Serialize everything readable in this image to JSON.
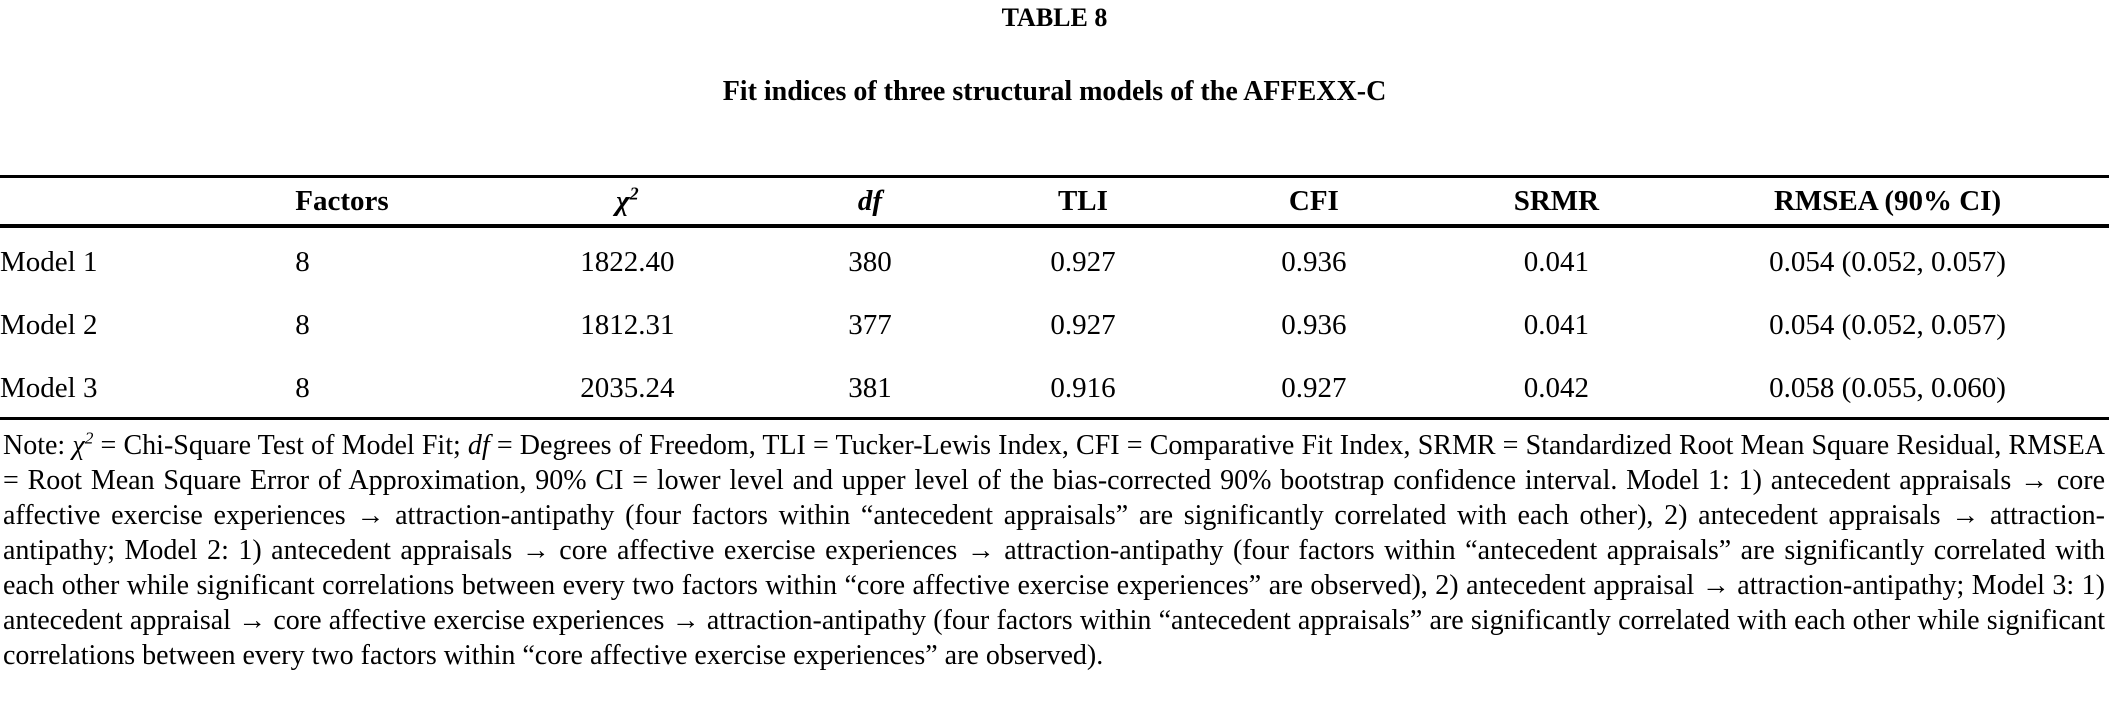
{
  "table_number": "TABLE 8",
  "caption": "Fit indices of three structural models of the AFFEXX-C",
  "table": {
    "headers": {
      "model": "",
      "factors": "Factors",
      "chi_base": "χ",
      "chi_sup": "2",
      "df": "df",
      "tli": "TLI",
      "cfi": "CFI",
      "srmr": "SRMR",
      "rmsea": "RMSEA (90% CI)"
    },
    "rows": [
      {
        "model": "Model 1",
        "factors": "8",
        "chi2": "1822.40",
        "df": "380",
        "tli": "0.927",
        "cfi": "0.936",
        "srmr": "0.041",
        "rmsea": "0.054 (0.052, 0.057)"
      },
      {
        "model": "Model 2",
        "factors": "8",
        "chi2": "1812.31",
        "df": "377",
        "tli": "0.927",
        "cfi": "0.936",
        "srmr": "0.041",
        "rmsea": "0.054 (0.052, 0.057)"
      },
      {
        "model": "Model 3",
        "factors": "8",
        "chi2": "2035.24",
        "df": "381",
        "tli": "0.916",
        "cfi": "0.927",
        "srmr": "0.042",
        "rmsea": "0.058 (0.055, 0.060)"
      }
    ]
  },
  "note": {
    "segments": [
      {
        "style": "normal",
        "text": "Note: "
      },
      {
        "style": "italic",
        "text": "χ"
      },
      {
        "style": "italic-sup",
        "text": "2"
      },
      {
        "style": "normal",
        "text": " = Chi-Square Test of Model Fit; "
      },
      {
        "style": "italic",
        "text": "df"
      },
      {
        "style": "normal",
        "text": " = Degrees of Freedom, TLI = Tucker-Lewis Index, CFI = Comparative Fit Index, SRMR = Standardized Root Mean Square Residual, RMSEA = Root Mean Square Error of Approximation, 90% CI = lower level and upper level of the bias-corrected 90% bootstrap confidence interval. Model 1: 1) antecedent appraisals → core affective exercise experiences → attraction-antipathy (four factors within “antecedent appraisals” are significantly correlated with each other), 2) antecedent appraisals → attraction-antipathy; Model 2: 1) antecedent appraisals → core affective exercise experiences → attraction-antipathy (four factors within “antecedent appraisals” are significantly correlated with each other while significant correlations between every two factors within “core affective exercise experiences” are observed), 2) antecedent appraisal → attraction-antipathy; Model 3: 1) antecedent appraisal → core affective exercise experiences → attraction-antipathy (four factors within “antecedent appraisals” are significantly correlated with each other while significant correlations between every two factors within “core affective exercise experiences” are observed)."
      }
    ]
  }
}
